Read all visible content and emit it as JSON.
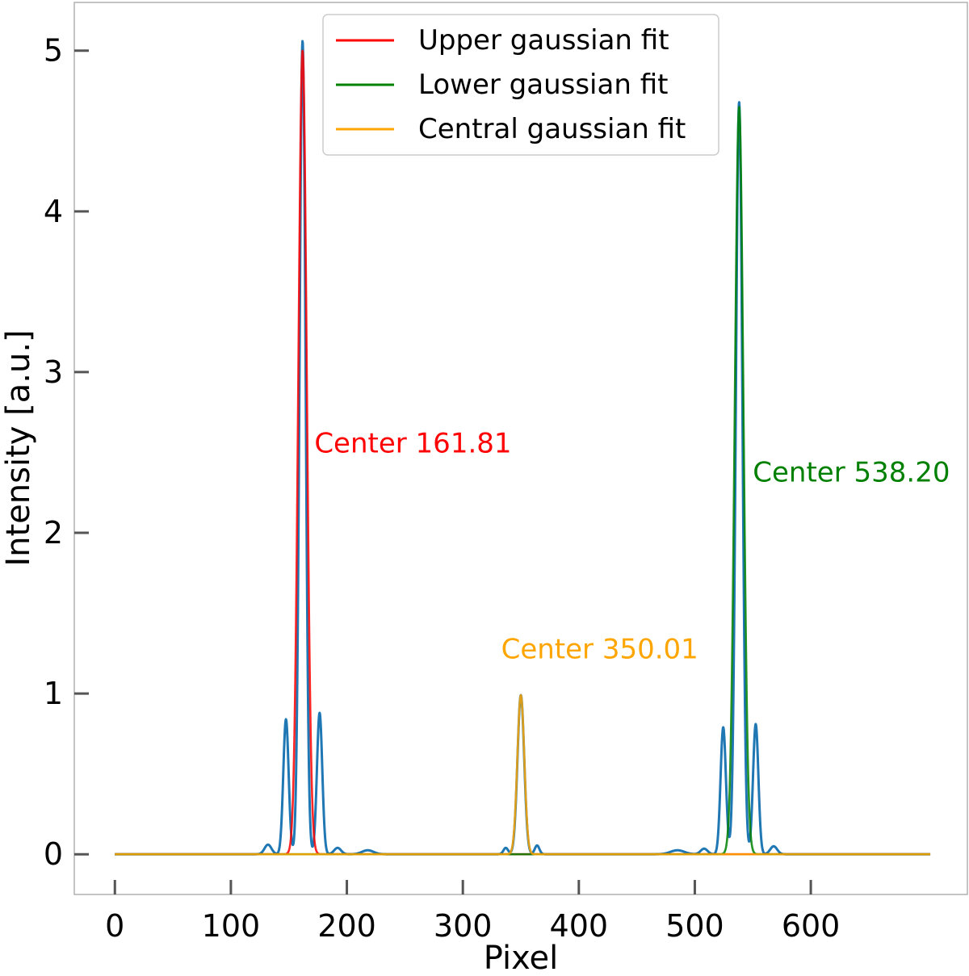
{
  "chart_data": {
    "type": "line",
    "xlabel": "Pixel",
    "ylabel": "Intensity [a.u.]",
    "xlim": [
      -35,
      735
    ],
    "ylim": [
      -0.25,
      5.3
    ],
    "xticks": [
      0,
      100,
      200,
      300,
      400,
      500,
      600
    ],
    "yticks": [
      0,
      1,
      2,
      3,
      4,
      5
    ],
    "grid": false,
    "legend_position": "top-center",
    "colors": {
      "profile": "#1f77b4",
      "upper": "#ff0000",
      "lower": "#008000",
      "central": "#ffa500",
      "axes": "#b0b0b0",
      "ticks": "#555555"
    },
    "series": [
      {
        "name": "Intensity profile",
        "key": "profile",
        "type": "sum_of_gaussians",
        "x_range": [
          0,
          703
        ],
        "components": [
          {
            "center": 161.81,
            "amplitude": 5.06,
            "sigma": 2.6
          },
          {
            "center": 147.5,
            "amplitude": 0.84,
            "sigma": 2.3
          },
          {
            "center": 176.5,
            "amplitude": 0.88,
            "sigma": 2.3
          },
          {
            "center": 132,
            "amplitude": 0.06,
            "sigma": 3
          },
          {
            "center": 192,
            "amplitude": 0.04,
            "sigma": 3
          },
          {
            "center": 218,
            "amplitude": 0.025,
            "sigma": 5
          },
          {
            "center": 350.01,
            "amplitude": 0.99,
            "sigma": 2.9
          },
          {
            "center": 337,
            "amplitude": 0.04,
            "sigma": 2
          },
          {
            "center": 364,
            "amplitude": 0.055,
            "sigma": 2
          },
          {
            "center": 538.2,
            "amplitude": 4.68,
            "sigma": 2.8
          },
          {
            "center": 524.5,
            "amplitude": 0.79,
            "sigma": 2.3
          },
          {
            "center": 552.5,
            "amplitude": 0.81,
            "sigma": 2.3
          },
          {
            "center": 508,
            "amplitude": 0.035,
            "sigma": 3
          },
          {
            "center": 568,
            "amplitude": 0.05,
            "sigma": 3
          },
          {
            "center": 485,
            "amplitude": 0.025,
            "sigma": 6
          }
        ]
      },
      {
        "name": "Upper gaussian fit",
        "key": "upper",
        "type": "gaussian",
        "x_range": [
          0,
          703
        ],
        "center": 161.81,
        "amplitude": 5.0,
        "sigma": 3.6
      },
      {
        "name": "Lower gaussian fit",
        "key": "lower",
        "type": "gaussian",
        "x_range": [
          0,
          703
        ],
        "center": 538.2,
        "amplitude": 4.65,
        "sigma": 3.7
      },
      {
        "name": "Central gaussian fit",
        "key": "central",
        "type": "gaussian",
        "x_range": [
          0,
          703
        ],
        "center": 350.01,
        "amplitude": 0.99,
        "sigma": 3.0
      }
    ],
    "legend": [
      {
        "label": "Upper gaussian fit",
        "key": "upper"
      },
      {
        "label": "Lower gaussian fit",
        "key": "lower"
      },
      {
        "label": "Central gaussian fit",
        "key": "central"
      }
    ],
    "annotations": [
      {
        "text": "Center 161.81",
        "x": 172,
        "y": 2.5,
        "key": "upper"
      },
      {
        "text": "Center 538.20",
        "x": 550,
        "y": 2.32,
        "key": "lower"
      },
      {
        "text": "Center 350.01",
        "x": 333,
        "y": 1.22,
        "key": "central"
      }
    ]
  }
}
